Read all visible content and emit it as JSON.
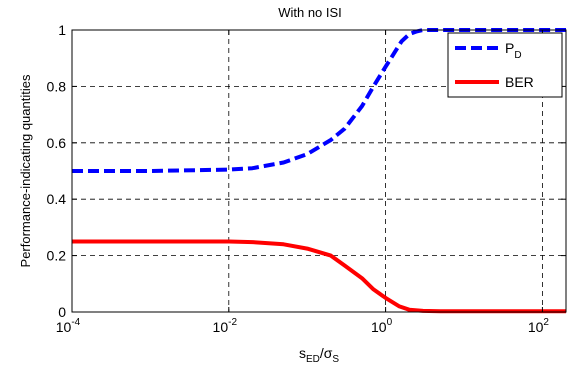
{
  "chart_data": {
    "type": "line",
    "title": "With no ISI",
    "ylabel": "Performance-indicating quantities",
    "xlabel": {
      "main": "s",
      "sub1": "ED",
      "slash": "/σ",
      "sub2": "S"
    },
    "x_scale": "log",
    "xlim": [
      0.0001,
      200
    ],
    "ylim": [
      0,
      1
    ],
    "grid": true,
    "legend_position": "top-right",
    "x_ticks": [
      {
        "value": 0.0001,
        "base": "10",
        "exp": "-4"
      },
      {
        "value": 0.01,
        "base": "10",
        "exp": "-2"
      },
      {
        "value": 1,
        "base": "10",
        "exp": "0"
      },
      {
        "value": 100,
        "base": "10",
        "exp": "2"
      }
    ],
    "y_ticks": [
      {
        "value": 0,
        "label": "0"
      },
      {
        "value": 0.2,
        "label": "0.2"
      },
      {
        "value": 0.4,
        "label": "0.4"
      },
      {
        "value": 0.6,
        "label": "0.6"
      },
      {
        "value": 0.8,
        "label": "0.8"
      },
      {
        "value": 1,
        "label": "1"
      }
    ],
    "series": [
      {
        "name": "P",
        "name_sub": "D",
        "color": "#0000ff",
        "style": "dashed",
        "x": [
          0.0001,
          0.001,
          0.01,
          0.02,
          0.05,
          0.1,
          0.2,
          0.3,
          0.5,
          0.7,
          1,
          1.3,
          1.6,
          2,
          2.5,
          3,
          5,
          10,
          100,
          200
        ],
        "y": [
          0.5,
          0.5,
          0.505,
          0.51,
          0.53,
          0.56,
          0.61,
          0.65,
          0.73,
          0.8,
          0.87,
          0.92,
          0.96,
          0.985,
          0.995,
          1,
          1,
          1,
          1,
          1
        ]
      },
      {
        "name": "BER",
        "name_sub": "",
        "color": "#ff0000",
        "style": "solid",
        "x": [
          0.0001,
          0.001,
          0.01,
          0.02,
          0.05,
          0.1,
          0.2,
          0.3,
          0.5,
          0.7,
          1,
          1.5,
          2,
          3,
          5,
          10,
          100,
          200
        ],
        "y": [
          0.25,
          0.25,
          0.25,
          0.248,
          0.24,
          0.225,
          0.2,
          0.165,
          0.12,
          0.08,
          0.05,
          0.02,
          0.008,
          0.004,
          0.003,
          0.003,
          0.003,
          0.003
        ]
      }
    ]
  }
}
